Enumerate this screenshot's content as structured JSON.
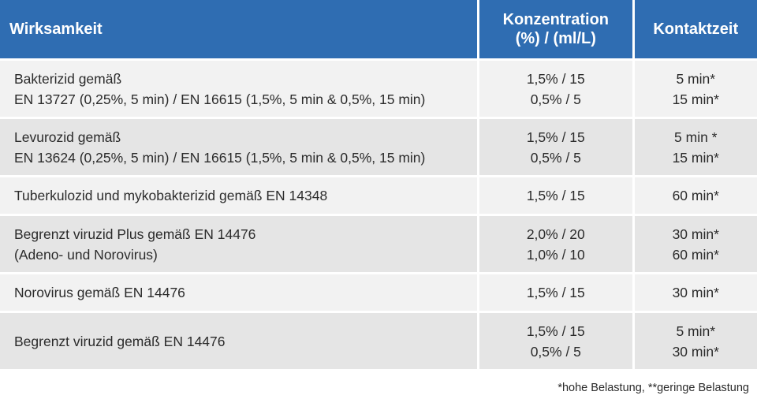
{
  "header": {
    "col1": "Wirksamkeit",
    "col2_line1": "Konzentration",
    "col2_line2": "(%) / (ml/L)",
    "col3": "Kontaktzeit"
  },
  "rows": [
    {
      "desc1": "Bakterizid gemäß",
      "desc2": "EN 13727 (0,25%, 5 min) / EN 16615 (1,5%, 5 min & 0,5%, 15 min)",
      "conc1": "1,5% / 15",
      "conc2": "0,5% / 5",
      "time1": "5 min*",
      "time2": "15 min*"
    },
    {
      "desc1": "Levurozid gemäß",
      "desc2": "EN 13624 (0,25%, 5 min) / EN 16615 (1,5%, 5 min & 0,5%, 15 min)",
      "conc1": "1,5% / 15",
      "conc2": "0,5% / 5",
      "time1": "5 min *",
      "time2": "15 min*"
    },
    {
      "desc1": "Tuberkulozid und mykobakterizid gemäß EN 14348",
      "conc1": "1,5% / 15",
      "time1": "60 min*"
    },
    {
      "desc1": "Begrenzt viruzid Plus gemäß EN 14476",
      "desc2": "(Adeno- und Norovirus)",
      "conc1": "2,0% / 20",
      "conc2": "1,0% / 10",
      "time1": "30 min*",
      "time2": "60 min*"
    },
    {
      "desc1": "Norovirus gemäß EN 14476",
      "conc1": "1,5% / 15",
      "time1": "30 min*"
    },
    {
      "desc1": "Begrenzt viruzid gemäß EN 14476",
      "conc1": "1,5% / 15",
      "conc2": "0,5% / 5",
      "time1": "5 min*",
      "time2": "30 min*"
    }
  ],
  "footnote": "*hohe Belastung,  **geringe Belastung",
  "colors": {
    "header_bg": "#2f6db2",
    "row_light": "#f2f2f2",
    "row_dark": "#e5e5e5"
  }
}
